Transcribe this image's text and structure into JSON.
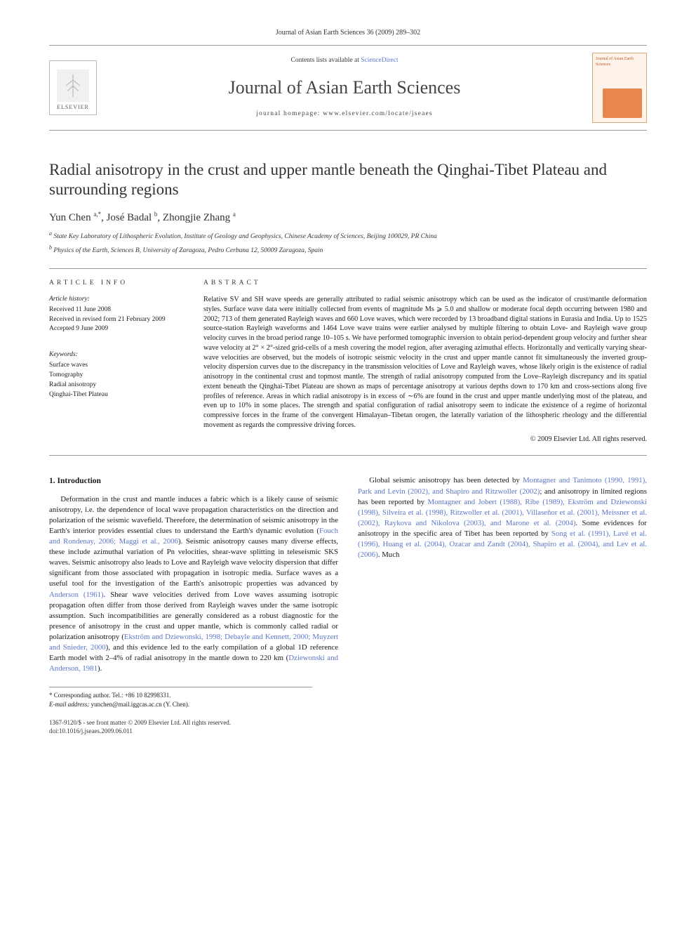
{
  "journal_ref": "Journal of Asian Earth Sciences 36 (2009) 289–302",
  "header": {
    "elsevier": "ELSEVIER",
    "contents_prefix": "Contents lists available at ",
    "contents_link": "ScienceDirect",
    "journal_name": "Journal of Asian Earth Sciences",
    "homepage_prefix": "journal homepage: ",
    "homepage_url": "www.elsevier.com/locate/jseaes",
    "cover_thumb_label": "Journal of Asian Earth Sciences"
  },
  "title": "Radial anisotropy in the crust and upper mantle beneath the Qinghai-Tibet Plateau and surrounding regions",
  "authors_html": "Yun Chen <sup>a,*</sup>, José Badal <sup>b</sup>, Zhongjie Zhang <sup>a</sup>",
  "affiliations": {
    "a": "State Key Laboratory of Lithospheric Evolution, Institute of Geology and Geophysics, Chinese Academy of Sciences, Beijing 100029, PR China",
    "b": "Physics of the Earth, Sciences B, University of Zaragoza, Pedro Cerbuna 12, 50009 Zaragoza, Spain"
  },
  "article_info": {
    "heading": "ARTICLE INFO",
    "history_label": "Article history:",
    "history": [
      "Received 11 June 2008",
      "Received in revised form 21 February 2009",
      "Accepted 9 June 2009"
    ],
    "keywords_label": "Keywords:",
    "keywords": [
      "Surface waves",
      "Tomography",
      "Radial anisotropy",
      "Qinghai-Tibet Plateau"
    ]
  },
  "abstract": {
    "heading": "ABSTRACT",
    "text": "Relative SV and SH wave speeds are generally attributed to radial seismic anisotropy which can be used as the indicator of crust/mantle deformation styles. Surface wave data were initially collected from events of magnitude Ms ⩾ 5.0 and shallow or moderate focal depth occurring between 1980 and 2002; 713 of them generated Rayleigh waves and 660 Love waves, which were recorded by 13 broadband digital stations in Eurasia and India. Up to 1525 source-station Rayleigh waveforms and 1464 Love wave trains were earlier analysed by multiple filtering to obtain Love- and Rayleigh wave group velocity curves in the broad period range 10–105 s. We have performed tomographic inversion to obtain period-dependent group velocity and further shear wave velocity at 2° × 2°-sized grid-cells of a mesh covering the model region, after averaging azimuthal effects. Horizontally and vertically varying shear-wave velocities are observed, but the models of isotropic seismic velocity in the crust and upper mantle cannot fit simultaneously the inverted group-velocity dispersion curves due to the discrepancy in the transmission velocities of Love and Rayleigh waves, whose likely origin is the existence of radial anisotropy in the continental crust and topmost mantle. The strength of radial anisotropy computed from the Love–Rayleigh discrepancy and its spatial extent beneath the Qinghai-Tibet Plateau are shown as maps of percentage anisotropy at various depths down to 170 km and cross-sections along five profiles of reference. Areas in which radial anisotropy is in excess of ∼6% are found in the crust and upper mantle underlying most of the plateau, and even up to 10% in some places. The strength and spatial configuration of radial anisotropy seem to indicate the existence of a regime of horizontal compressive forces in the frame of the convergent Himalayan–Tibetan orogen, the laterally variation of the lithospheric rheology and the differential movement as regards the compressive driving forces.",
    "copyright": "© 2009 Elsevier Ltd. All rights reserved."
  },
  "body": {
    "section_number": "1.",
    "section_title": "Introduction",
    "col1_p1_a": "Deformation in the crust and mantle induces a fabric which is a likely cause of seismic anisotropy, i.e. the dependence of local wave propagation characteristics on the direction and polarization of the seismic wavefield. Therefore, the determination of seismic anisotropy in the Earth's interior provides essential clues to understand the Earth's dynamic evolution (",
    "ref1": "Fouch and Rondenay, 2006; Maggi et al., 2006",
    "col1_p1_b": "). Seismic anisotropy causes many diverse effects, these include azimuthal variation of Pn velocities, shear-wave splitting in teleseismic SKS waves. Seismic anisotropy also leads to Love and Rayleigh wave velocity dispersion that differ significant from those associated with propagation in isotropic media. Surface waves as a useful tool for the investigation of the Earth's anisotropic properties was advanced by ",
    "ref2": "Anderson (1961)",
    "col1_p1_c": ". Shear wave velocities derived from Love waves assuming isotropic propagation often ",
    "col2_p1_a": "differ from those derived from Rayleigh waves under the same isotropic assumption. Such incompatibilities are generally considered as a robust diagnostic for the presence of anisotropy in the crust and upper mantle, which is commonly called radial or polarization anisotropy (",
    "ref3": "Ekström and Dziewonski, 1998; Debayle and Kennett, 2000; Muyzert and Snieder, 2000",
    "col2_p1_b": "), and this evidence led to the early compilation of a global 1D reference Earth model with 2–4% of radial anisotropy in the mantle down to 220 km (",
    "ref4": "Dziewonski and Anderson, 1981",
    "col2_p1_c": ").",
    "col2_p2_a": "Global seismic anisotropy has been detected by ",
    "ref5": "Montagner and Tanimoto (1990, 1991), Park and Levin (2002), and Shapiro and Ritzwoller (2002)",
    "col2_p2_b": "; and anisotropy in limited regions has been reported by ",
    "ref6": "Montagner and Jobert (1988), Ribe (1989), Ekström and Dziewonski (1998), Silveira et al. (1998), Ritzwoller et al. (2001), Villaseñor et al. (2001), Meissner et al. (2002), Raykova and Nikolova (2003), and Marone et al. (2004)",
    "col2_p2_c": ". Some evidences for anisotropy in the specific area of Tibet has been reported by ",
    "ref7": "Song et al. (1991), Lavé et al. (1996), Huang et al. (2004), Ozacar and Zandt (2004), Shapiro et al. (2004), and Lev et al. (2006)",
    "col2_p2_d": ". Much"
  },
  "footnote": {
    "corr": "* Corresponding author. Tel.: +86 10 82998331.",
    "email_label": "E-mail address:",
    "email": "yunchen@mail.iggcas.ac.cn",
    "email_paren": "(Y. Chen)."
  },
  "footer": {
    "issn_line": "1367-9120/$ - see front matter © 2009 Elsevier Ltd. All rights reserved.",
    "doi": "doi:10.1016/j.jseaes.2009.06.011"
  },
  "colors": {
    "link": "#5b76c9",
    "rule": "#999999",
    "cover_bg": "#fdf3ea",
    "cover_border": "#d9a978",
    "cover_map": "#e8874b"
  },
  "typography": {
    "body_pt": 10.8,
    "title_pt": 23,
    "journal_pt": 26,
    "abstract_pt": 10.2,
    "footnote_pt": 9
  }
}
